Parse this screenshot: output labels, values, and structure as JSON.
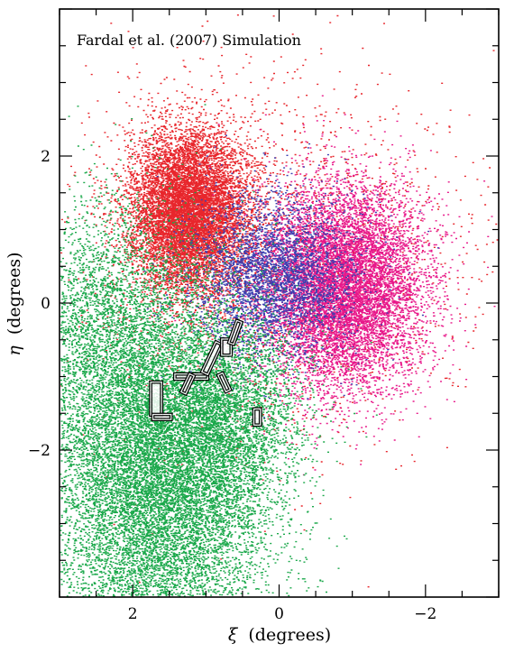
{
  "chart_data": {
    "type": "scatter",
    "title": "Fardal et al. (2007) Simulation",
    "xlabel_symbol": "ξ",
    "xlabel_text": "(degrees)",
    "ylabel_symbol": "η",
    "ylabel_text": "(degrees)",
    "xlim": [
      3,
      -3
    ],
    "ylim": [
      -4,
      4
    ],
    "x_ticks": [
      2,
      0,
      -2
    ],
    "x_tick_labels": [
      "2",
      "0",
      "−2"
    ],
    "y_ticks": [
      2,
      0,
      -2
    ],
    "y_tick_labels": [
      "2",
      "0",
      "−2"
    ],
    "grid": false,
    "colors": {
      "red": "#e8262c",
      "magenta": "#e8188a",
      "blue": "#3b3fb0",
      "green": "#1aa84a",
      "field_outline": "#000000"
    },
    "series": [
      {
        "color": "red",
        "components": [
          {
            "cx": 1.25,
            "cy": 1.25,
            "sx": 0.4,
            "sy": 0.55,
            "n": 9000
          },
          {
            "cx": 0.2,
            "cy": 0.6,
            "sx": 1.3,
            "sy": 1.2,
            "n": 2500
          }
        ]
      },
      {
        "color": "magenta",
        "components": [
          {
            "cx": -0.9,
            "cy": 0.2,
            "sx": 0.55,
            "sy": 0.7,
            "n": 9000
          }
        ]
      },
      {
        "color": "blue",
        "components": [
          {
            "cx": 0.1,
            "cy": 0.35,
            "sx": 0.55,
            "sy": 0.55,
            "n": 3500
          }
        ]
      },
      {
        "color": "green",
        "components": [
          {
            "cx": 1.6,
            "cy": -2.4,
            "sx": 0.75,
            "sy": 1.3,
            "n": 14000
          },
          {
            "cx": 2.4,
            "cy": -0.5,
            "sx": 0.55,
            "sy": 1.0,
            "n": 3000
          },
          {
            "cx": 0.7,
            "cy": -1.5,
            "sx": 0.5,
            "sy": 0.6,
            "n": 2500
          }
        ]
      }
    ],
    "fields": [
      {
        "cx": 1.68,
        "cy": -1.3,
        "w": 0.18,
        "h": 0.48,
        "angle": 0
      },
      {
        "cx": 1.6,
        "cy": -1.55,
        "w": 0.28,
        "h": 0.1,
        "angle": 0
      },
      {
        "cx": 1.2,
        "cy": -1.0,
        "w": 0.48,
        "h": 0.1,
        "angle": 0
      },
      {
        "cx": 1.25,
        "cy": -1.1,
        "w": 0.1,
        "h": 0.3,
        "angle": 25
      },
      {
        "cx": 0.92,
        "cy": -0.75,
        "w": 0.12,
        "h": 0.48,
        "angle": 25
      },
      {
        "cx": 0.72,
        "cy": -0.6,
        "w": 0.16,
        "h": 0.25,
        "angle": 0
      },
      {
        "cx": 0.6,
        "cy": -0.4,
        "w": 0.1,
        "h": 0.35,
        "angle": 20
      },
      {
        "cx": 0.75,
        "cy": -1.08,
        "w": 0.1,
        "h": 0.28,
        "angle": -25
      },
      {
        "cx": 0.3,
        "cy": -1.55,
        "w": 0.12,
        "h": 0.25,
        "angle": 0
      }
    ]
  }
}
